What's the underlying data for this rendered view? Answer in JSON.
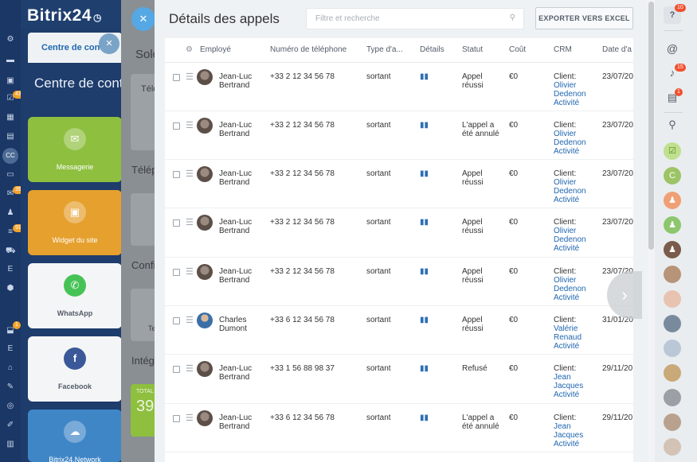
{
  "app": {
    "brand": "Bitrix24",
    "clock_icon": "clock-icon"
  },
  "sidebar": {
    "badges": [
      "43",
      "39",
      "91",
      "1"
    ],
    "avatar_initials": "CC",
    "letter_items": [
      "E",
      "E"
    ]
  },
  "background": {
    "tab_label": "Centre de contact",
    "title": "Centre de contact",
    "tiles": [
      {
        "label": "Messagerie",
        "icon": "mail-icon"
      },
      {
        "label": "Widget du site",
        "icon": "chat-icon"
      },
      {
        "label": "WhatsApp",
        "icon": "whatsapp-icon"
      },
      {
        "label": "Facebook",
        "icon": "facebook-icon"
      },
      {
        "label": "Bitrix24.Network",
        "icon": "cloud-icon"
      }
    ],
    "mid_labels": [
      "Solo",
      "Télé",
      "Télép",
      "Confi",
      "Te",
      "Intég",
      "TOTAL",
      "39"
    ]
  },
  "slider": {
    "title": "Détails des appels",
    "search_placeholder": "Filtre et recherche",
    "export_label": "EXPORTER VERS EXCEL",
    "columns": [
      "Employé",
      "Numéro de téléphone",
      "Type d'a...",
      "Détails",
      "Statut",
      "Coût",
      "CRM",
      "Date d'a"
    ],
    "rows": [
      {
        "employee": "Jean-Luc Bertrand",
        "phone": "+33 2 12 34 56 78",
        "type": "sortant",
        "status": "Appel réussi",
        "cost": "€0",
        "crm_label": "Client:",
        "crm_contact": "Olivier Dedenon",
        "crm_activity": "Activité",
        "date": "23/07/20"
      },
      {
        "employee": "Jean-Luc Bertrand",
        "phone": "+33 2 12 34 56 78",
        "type": "sortant",
        "status": "L'appel a été annulé",
        "cost": "€0",
        "crm_label": "Client:",
        "crm_contact": "Olivier Dedenon",
        "crm_activity": "Activité",
        "date": "23/07/20"
      },
      {
        "employee": "Jean-Luc Bertrand",
        "phone": "+33 2 12 34 56 78",
        "type": "sortant",
        "status": "Appel réussi",
        "cost": "€0",
        "crm_label": "Client:",
        "crm_contact": "Olivier Dedenon",
        "crm_activity": "Activité",
        "date": "23/07/20"
      },
      {
        "employee": "Jean-Luc Bertrand",
        "phone": "+33 2 12 34 56 78",
        "type": "sortant",
        "status": "Appel réussi",
        "cost": "€0",
        "crm_label": "Client:",
        "crm_contact": "Olivier Dedenon",
        "crm_activity": "Activité",
        "date": "23/07/20"
      },
      {
        "employee": "Jean-Luc Bertrand",
        "phone": "+33 2 12 34 56 78",
        "type": "sortant",
        "status": "Appel réussi",
        "cost": "€0",
        "crm_label": "Client:",
        "crm_contact": "Olivier Dedenon",
        "crm_activity": "Activité",
        "date": "23/07/20"
      },
      {
        "employee": "Charles Dumont",
        "phone": "+33 6 12 34 56 78",
        "type": "sortant",
        "status": "Appel réussi",
        "cost": "€0",
        "crm_label": "Client:",
        "crm_contact": "Valérie Renaud",
        "crm_activity": "Activité",
        "date": "31/01/20"
      },
      {
        "employee": "Jean-Luc Bertrand",
        "phone": "+33 1 56 88 98 37",
        "type": "sortant",
        "status": "Refusé",
        "cost": "€0",
        "crm_label": "Client:",
        "crm_contact": "Jean Jacques",
        "crm_activity": "Activité",
        "date": "29/11/20"
      },
      {
        "employee": "Jean-Luc Bertrand",
        "phone": "+33 6 12 34 56 78",
        "type": "sortant",
        "status": "L'appel a été annulé",
        "cost": "€0",
        "crm_label": "Client:",
        "crm_contact": "Jean Jacques",
        "crm_activity": "Activité",
        "date": "29/11/20"
      }
    ]
  },
  "rightbar": {
    "help_badge": "10",
    "notif_badge": "15",
    "chat_badge": "1",
    "contact_initial": "C"
  },
  "colors": {
    "accent": "#2067b0",
    "sidebar": "#1b3766",
    "badge_orange": "#f2a22a",
    "badge_red": "#f0502e"
  }
}
